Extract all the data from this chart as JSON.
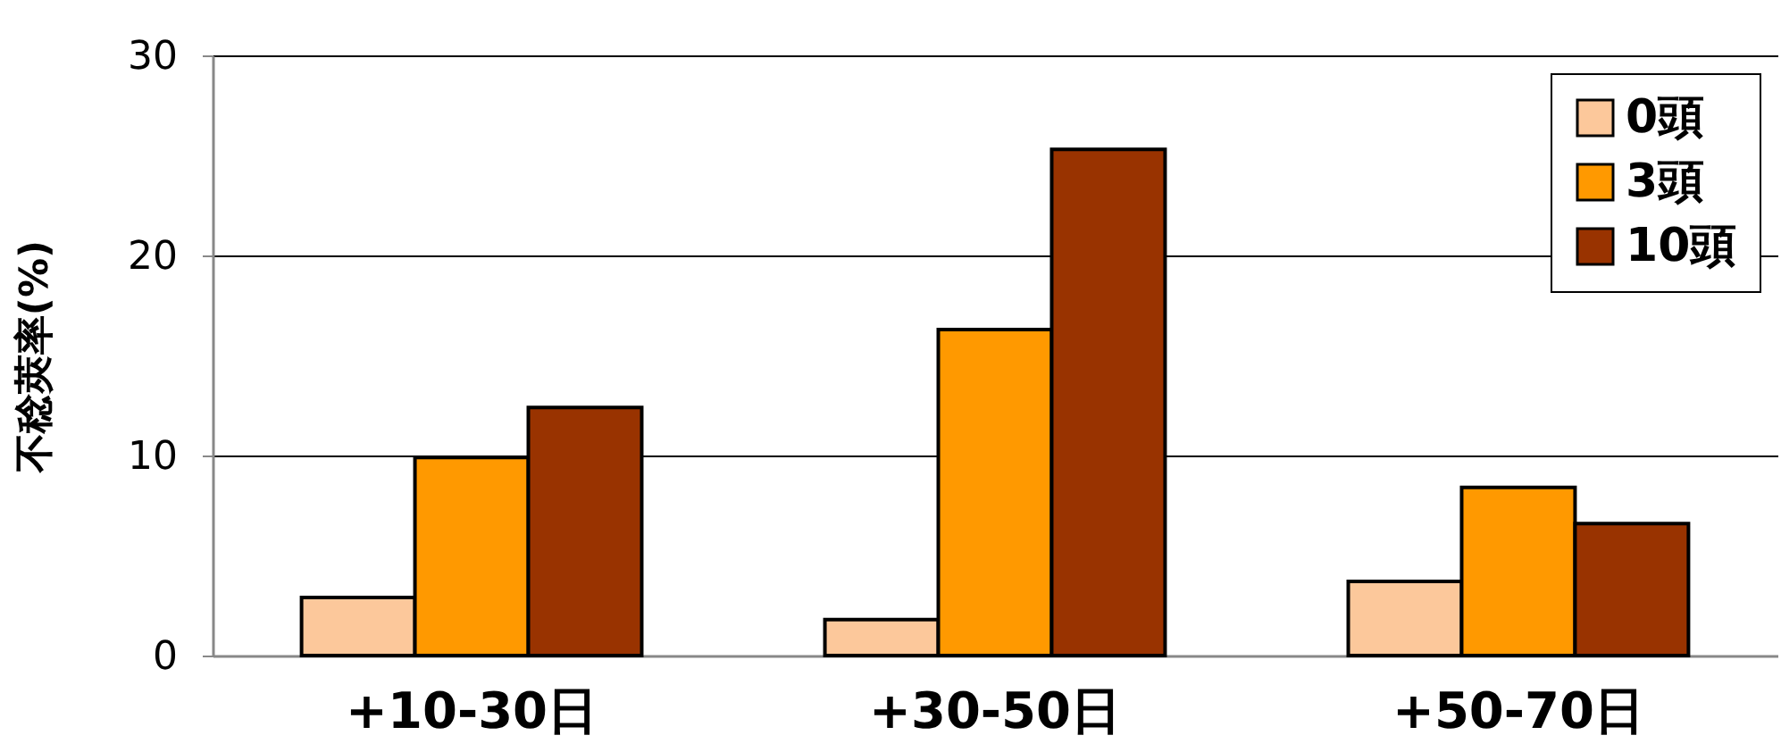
{
  "chart_data": {
    "type": "bar",
    "ylabel": "不稔莢率(%)",
    "categories": [
      "+10-30日",
      "+30-50日",
      "+50-70日"
    ],
    "series": [
      {
        "name": "0頭",
        "color": "#fcc89b",
        "values": [
          2.9,
          1.8,
          3.7
        ]
      },
      {
        "name": "3頭",
        "color": "#ff9900",
        "values": [
          9.9,
          16.3,
          8.4
        ]
      },
      {
        "name": "10頭",
        "color": "#993300",
        "values": [
          12.4,
          25.3,
          6.6
        ]
      }
    ],
    "ylim": [
      0,
      30
    ],
    "yticks": [
      0,
      10,
      20,
      30
    ],
    "grid": "y",
    "legend": "top right"
  }
}
